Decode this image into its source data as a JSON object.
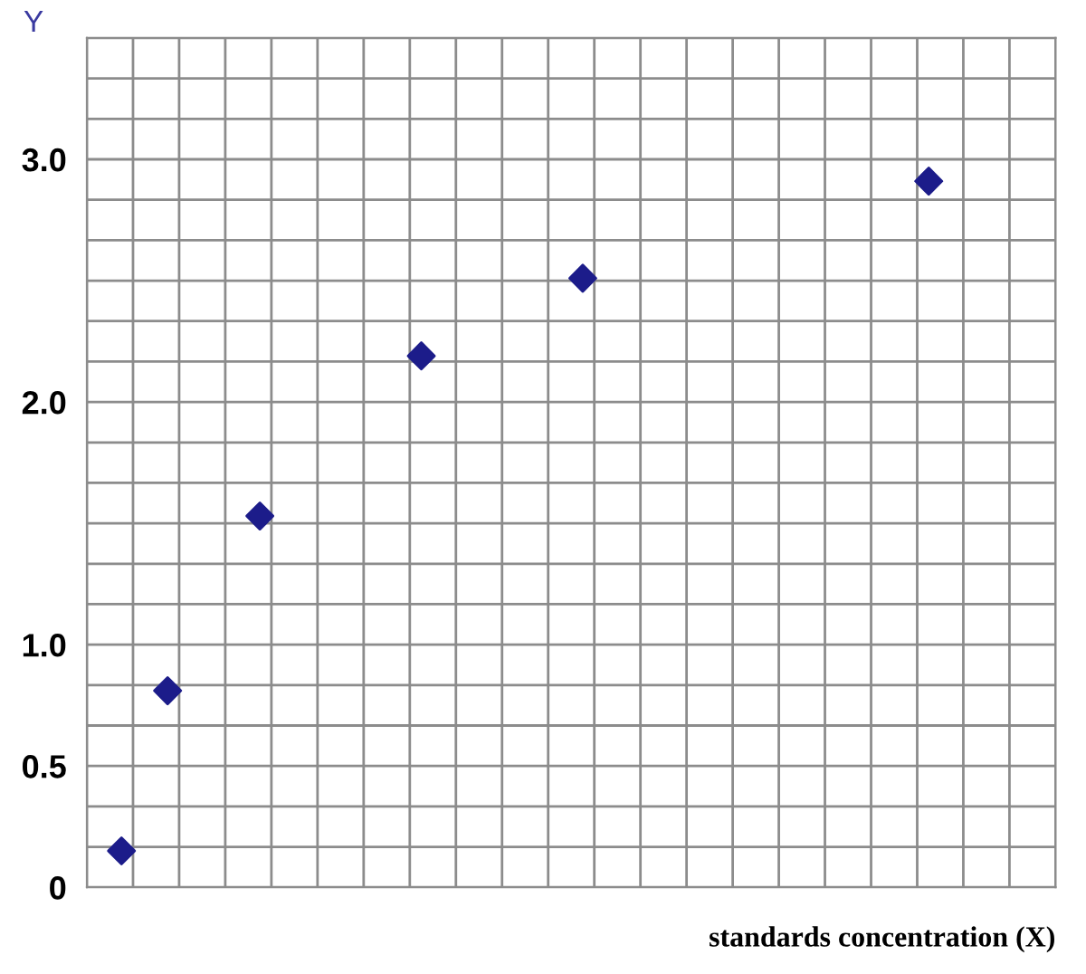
{
  "chart_data": {
    "type": "scatter",
    "xlabel": "standards concentration (X)",
    "ylabel": "Y",
    "categories": [
      null,
      null,
      null,
      null,
      null,
      null,
      null,
      null,
      null,
      null,
      null,
      null,
      null,
      null,
      null,
      null,
      null,
      null,
      null,
      null,
      null,
      null,
      null,
      null,
      null,
      null,
      null,
      null,
      null,
      null,
      null,
      null,
      null,
      null,
      null,
      null,
      null,
      null,
      null,
      null,
      null,
      null
    ],
    "series": [
      {
        "color": "#1c1c8a",
        "values": [
          null,
          0.15,
          null,
          0.81,
          null,
          null,
          null,
          1.53,
          null,
          null,
          null,
          null,
          null,
          null,
          2.19,
          null,
          null,
          null,
          null,
          null,
          null,
          2.51,
          null,
          null,
          null,
          null,
          null,
          null,
          null,
          null,
          null,
          null,
          null,
          null,
          null,
          null,
          2.91,
          null,
          null,
          null,
          null,
          null
        ]
      }
    ],
    "marker": "diamond",
    "grid": true,
    "ylim": [
      0,
      3.5
    ],
    "yticks": [
      0,
      {
        "value": 0.1667,
        "label": null
      },
      {
        "value": 0.3333,
        "label": null
      },
      0.5,
      {
        "value": 0.6667,
        "label": null
      },
      {
        "value": 0.8333,
        "label": null
      },
      {
        "value": 1,
        "label": "1.0"
      },
      {
        "value": 1.1667,
        "label": null
      },
      {
        "value": 1.3333,
        "label": null
      },
      {
        "value": 1.5,
        "label": null
      },
      {
        "value": 1.6667,
        "label": null
      },
      {
        "value": 1.8333,
        "label": null
      },
      {
        "value": 2,
        "label": "2.0"
      },
      {
        "value": 2.1667,
        "label": null
      },
      {
        "value": 2.3333,
        "label": null
      },
      {
        "value": 2.5,
        "label": null
      },
      {
        "value": 2.6667,
        "label": null
      },
      {
        "value": 2.8333,
        "label": null
      },
      {
        "value": 3,
        "label": "3.0"
      },
      {
        "value": 3.1667,
        "label": null
      },
      {
        "value": 3.3333,
        "label": null
      },
      {
        "value": 3.5,
        "label": null
      }
    ]
  }
}
